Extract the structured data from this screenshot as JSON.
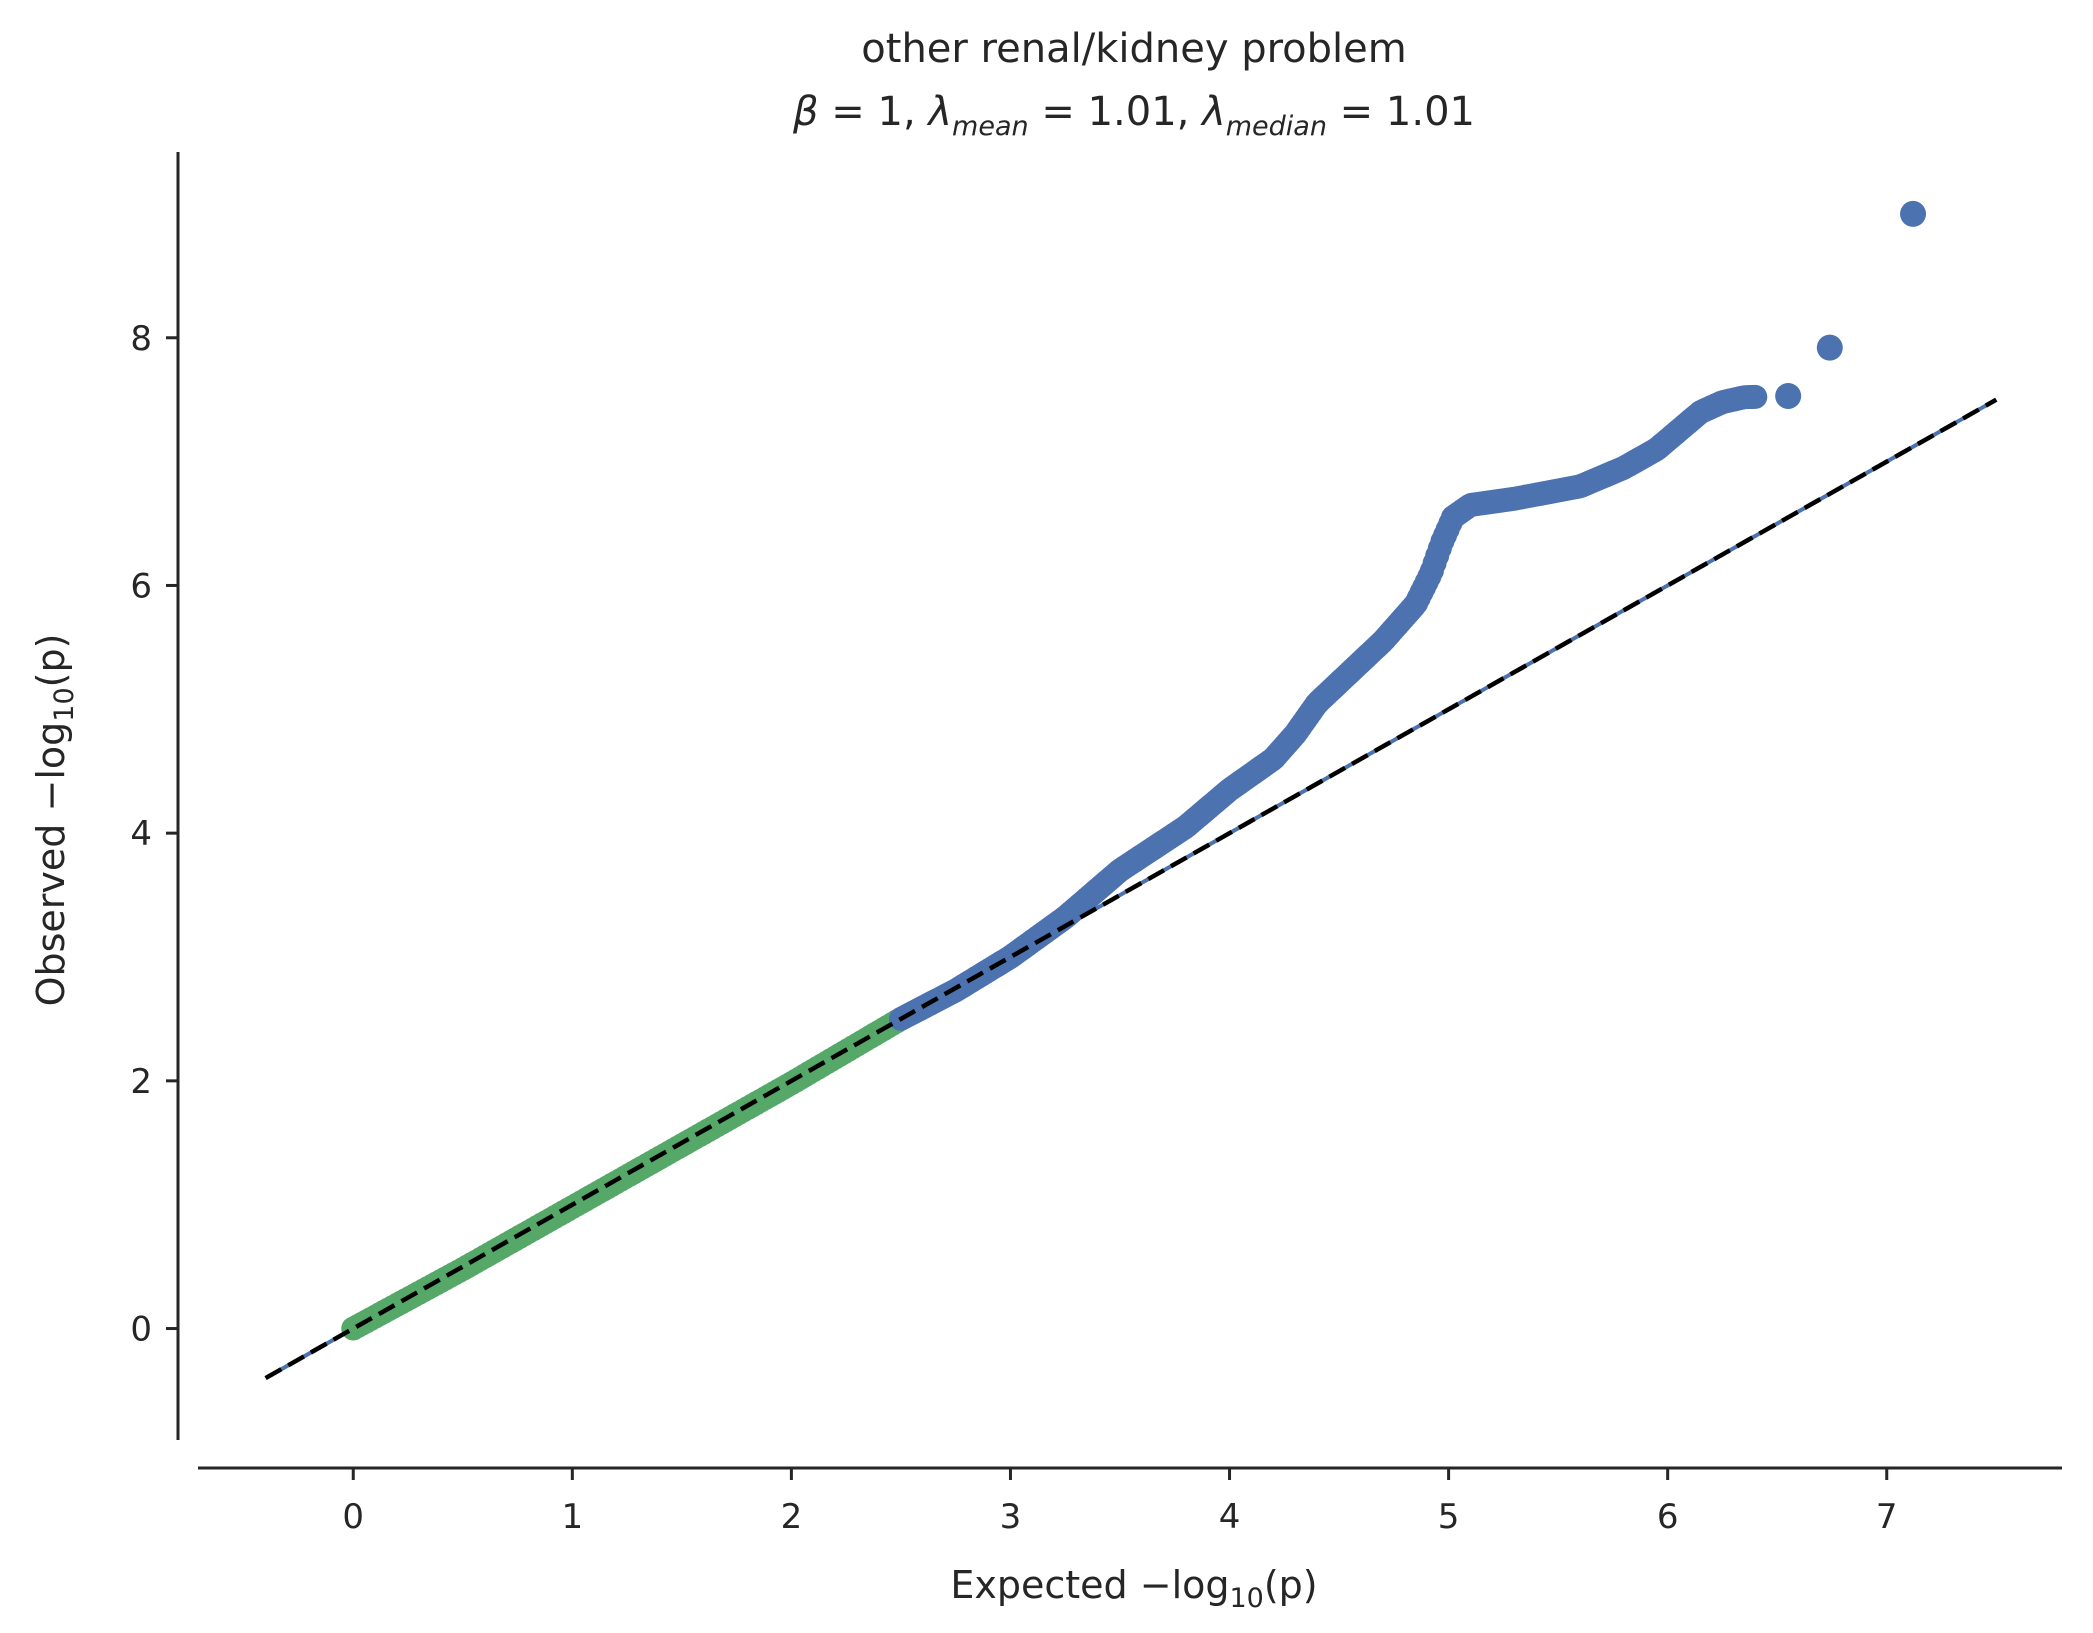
{
  "chart_data": {
    "type": "scatter",
    "title": "other renal/kidney problem",
    "subtitle": {
      "beta_symbol": "β",
      "beta_value": "1",
      "lambda_symbol": "λ",
      "lambda_mean_sub": "mean",
      "lambda_mean_value": "1.01",
      "lambda_median_sub": "median",
      "lambda_median_value": "1.01"
    },
    "xlabel": {
      "prefix": "Expected −log",
      "sub": "10",
      "suffix": "(p)"
    },
    "ylabel": {
      "prefix": "Observed −log",
      "sub": "10",
      "suffix": "(p)"
    },
    "xlim": [
      -0.8,
      7.8
    ],
    "ylim": [
      -0.9,
      9.5
    ],
    "xticks": [
      0,
      1,
      2,
      3,
      4,
      5,
      6,
      7
    ],
    "yticks": [
      0,
      2,
      4,
      6,
      8
    ],
    "grid": false,
    "legend": "none",
    "colors": {
      "green": "#55a868",
      "blue": "#4c72b0",
      "reference": "#000000"
    },
    "reference_line": {
      "from": [
        -0.4,
        -0.4
      ],
      "to": [
        7.5,
        7.5
      ],
      "style": "dashed"
    },
    "series": [
      {
        "color": "green",
        "range": [
          0,
          2.5
        ],
        "points": [
          [
            0.0,
            0.0
          ],
          [
            0.5,
            0.48
          ],
          [
            1.0,
            0.98
          ],
          [
            1.5,
            1.48
          ],
          [
            2.0,
            1.98
          ],
          [
            2.5,
            2.5
          ]
        ]
      },
      {
        "color": "blue",
        "points": [
          [
            2.5,
            2.5
          ],
          [
            2.75,
            2.73
          ],
          [
            3.0,
            3.0
          ],
          [
            3.25,
            3.32
          ],
          [
            3.5,
            3.7
          ],
          [
            3.8,
            4.05
          ],
          [
            4.0,
            4.35
          ],
          [
            4.2,
            4.6
          ],
          [
            4.3,
            4.8
          ],
          [
            4.4,
            5.05
          ],
          [
            4.55,
            5.3
          ],
          [
            4.7,
            5.55
          ],
          [
            4.85,
            5.85
          ],
          [
            4.92,
            6.1
          ],
          [
            4.97,
            6.35
          ],
          [
            5.02,
            6.55
          ],
          [
            5.1,
            6.65
          ],
          [
            5.3,
            6.7
          ],
          [
            5.6,
            6.8
          ],
          [
            5.8,
            6.95
          ],
          [
            5.95,
            7.1
          ],
          [
            6.05,
            7.25
          ],
          [
            6.15,
            7.4
          ],
          [
            6.25,
            7.48
          ],
          [
            6.35,
            7.52
          ],
          [
            6.55,
            7.53
          ],
          [
            6.74,
            7.92
          ],
          [
            7.12,
            9.0
          ]
        ]
      }
    ]
  }
}
